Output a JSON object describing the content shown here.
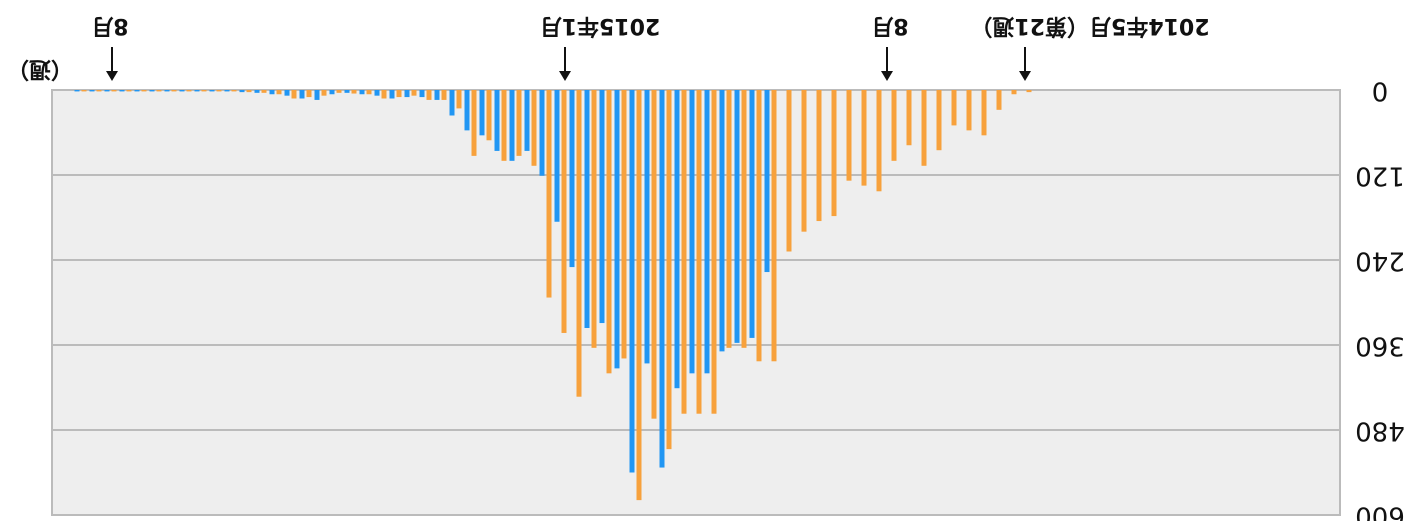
{
  "chart_data": {
    "type": "bar",
    "series": [
      {
        "color": "#f7a13c",
        "values": [
          3,
          6,
          28,
          64,
          57,
          50,
          85,
          107,
          78,
          100,
          143,
          135,
          128,
          178,
          185,
          200,
          228,
          383,
          383,
          364,
          364,
          457,
          457,
          457,
          507,
          464,
          579,
          379,
          400,
          364,
          433,
          343,
          293,
          107,
          93,
          100,
          71,
          93,
          26,
          14,
          14,
          8,
          10,
          12,
          6,
          5,
          4,
          8,
          10,
          12,
          6,
          4,
          3,
          2,
          2,
          2,
          2,
          2,
          2,
          2,
          2,
          2,
          2,
          2
        ]
      },
      {
        "color": "#2196f3",
        "values": [
          0,
          0,
          0,
          0,
          0,
          0,
          0,
          0,
          0,
          0,
          0,
          0,
          0,
          0,
          0,
          0,
          0,
          257,
          350,
          357,
          369,
          400,
          400,
          421,
          533,
          386,
          540,
          393,
          329,
          336,
          250,
          186,
          121,
          86,
          100,
          86,
          64,
          57,
          36,
          14,
          10,
          10,
          12,
          8,
          6,
          4,
          6,
          14,
          12,
          8,
          6,
          4,
          3,
          2,
          2,
          2,
          2,
          2,
          2,
          2,
          2,
          2,
          2,
          2
        ]
      }
    ],
    "ylim": [
      0,
      600
    ],
    "yticks": [
      0,
      120,
      240,
      360,
      480,
      600
    ],
    "grid": true,
    "x_unit": "（週）",
    "annotations": [
      "2014年5月（第21週）",
      "8月",
      "2015年1月",
      "8月"
    ]
  }
}
